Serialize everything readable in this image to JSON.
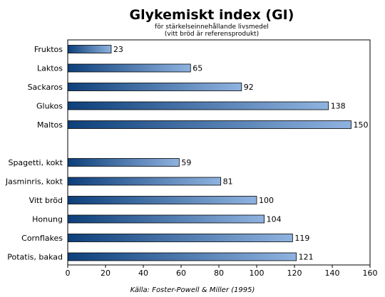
{
  "chart_data": {
    "type": "bar",
    "orientation": "horizontal",
    "title": "Glykemiskt index (GI)",
    "subtitle_lines": [
      "för stärkelseinnehållande livsmedel",
      "(vitt bröd är referensprodukt)"
    ],
    "source": "Källa: Foster-Powell & Miller (1995)",
    "categories": [
      "Fruktos",
      "Laktos",
      "Sackaros",
      "Glukos",
      "Maltos",
      "",
      "Spagetti, kokt",
      "Jasminris, kokt",
      "Vitt bröd",
      "Honung",
      "Cornflakes",
      "Potatis, bakad"
    ],
    "values": [
      23,
      65,
      92,
      138,
      150,
      null,
      59,
      81,
      100,
      104,
      119,
      121
    ],
    "value_labels": [
      "23",
      "65",
      "92",
      "138",
      "150",
      "",
      "59",
      "81",
      "100",
      "104",
      "119",
      "121"
    ],
    "xlim": [
      0,
      160
    ],
    "xticks": [
      0,
      20,
      40,
      60,
      80,
      100,
      120,
      140,
      160
    ],
    "xtick_labels": [
      "0",
      "20",
      "40",
      "60",
      "80",
      "100",
      "120",
      "140",
      "160"
    ],
    "xlabel": "",
    "ylabel": "",
    "grid": false,
    "legend": "none",
    "colors": {
      "bar_dark": "#0d3f7a",
      "bar_light": "#8fb3e0",
      "bar_border": "#000000",
      "axis": "#000000"
    }
  }
}
